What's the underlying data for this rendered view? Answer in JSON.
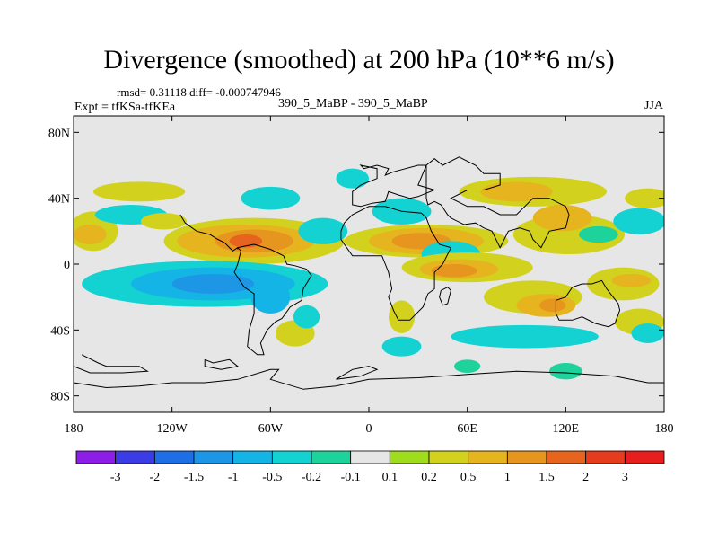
{
  "chart_data": {
    "type": "heatmap",
    "title": "Divergence (smoothed) at 200 hPa (10**6 m/s)",
    "stats": "rmsd= 0.31118 diff= -0.000747946",
    "experiment": "Expt = tfKSa-tfKEa",
    "cases": "390_5_MaBP - 390_5_MaBP",
    "season": "JJA",
    "x_axis": {
      "range": [
        -180,
        180
      ],
      "ticks": [
        {
          "value": -180,
          "label": "180"
        },
        {
          "value": -120,
          "label": "120W"
        },
        {
          "value": -60,
          "label": "60W"
        },
        {
          "value": 0,
          "label": "0"
        },
        {
          "value": 60,
          "label": "60E"
        },
        {
          "value": 120,
          "label": "120E"
        },
        {
          "value": 180,
          "label": "180"
        }
      ]
    },
    "y_axis": {
      "range": [
        -90,
        90
      ],
      "ticks": [
        {
          "value": 80,
          "label": "80N"
        },
        {
          "value": 40,
          "label": "40N"
        },
        {
          "value": 0,
          "label": "0"
        },
        {
          "value": -40,
          "label": "40S"
        },
        {
          "value": -80,
          "label": "80S"
        }
      ]
    },
    "colorbar": {
      "colors": [
        "#8c1ee6",
        "#3c3ce6",
        "#1e6ee6",
        "#1e96e6",
        "#14b4e6",
        "#14d2d2",
        "#1ed29b",
        "#e6e6e6",
        "#a0dc1e",
        "#d2d21e",
        "#e6b41e",
        "#e6961e",
        "#e6641e",
        "#e63c1e",
        "#e61e1e"
      ],
      "labels": [
        "-3",
        "-2",
        "-1.5",
        "-1",
        "-0.5",
        "-0.2",
        "-0.1",
        "0.1",
        "0.2",
        "0.5",
        "1",
        "1.5",
        "2",
        "3"
      ]
    },
    "regions": [
      {
        "lon": -140,
        "lat": 44,
        "rlon": 28,
        "rlat": 6,
        "level": 0.2
      },
      {
        "lon": -60,
        "lat": 40,
        "rlon": 18,
        "rlat": 7,
        "level": -0.2
      },
      {
        "lon": -10,
        "lat": 52,
        "rlon": 10,
        "rlat": 6,
        "level": -0.2
      },
      {
        "lon": 100,
        "lat": 44,
        "rlon": 45,
        "rlat": 9,
        "level": 0.2
      },
      {
        "lon": 90,
        "lat": 44,
        "rlon": 22,
        "rlat": 6,
        "level": 0.5
      },
      {
        "lon": 170,
        "lat": 40,
        "rlon": 14,
        "rlat": 6,
        "level": 0.2
      },
      {
        "lon": 20,
        "lat": 32,
        "rlon": 18,
        "rlat": 8,
        "level": -0.2
      },
      {
        "lon": -168,
        "lat": 20,
        "rlon": 15,
        "rlat": 12,
        "level": 0.2
      },
      {
        "lon": -170,
        "lat": 18,
        "rlon": 10,
        "rlat": 6,
        "level": 0.5
      },
      {
        "lon": -145,
        "lat": 30,
        "rlon": 22,
        "rlat": 6,
        "level": -0.2
      },
      {
        "lon": -125,
        "lat": 26,
        "rlon": 14,
        "rlat": 5,
        "level": 0.2
      },
      {
        "lon": -70,
        "lat": 14,
        "rlon": 55,
        "rlat": 14,
        "level": 0.2
      },
      {
        "lon": -75,
        "lat": 14,
        "rlon": 42,
        "rlat": 10,
        "level": 0.5
      },
      {
        "lon": -70,
        "lat": 14,
        "rlon": 24,
        "rlat": 7,
        "level": 1
      },
      {
        "lon": -75,
        "lat": 14,
        "rlon": 10,
        "rlat": 4,
        "level": 1.5
      },
      {
        "lon": -28,
        "lat": 20,
        "rlon": 15,
        "rlat": 8,
        "level": -0.2
      },
      {
        "lon": 35,
        "lat": 14,
        "rlon": 50,
        "rlat": 10,
        "level": 0.2
      },
      {
        "lon": 35,
        "lat": 14,
        "rlon": 35,
        "rlat": 8,
        "level": 0.5
      },
      {
        "lon": 32,
        "lat": 14,
        "rlon": 18,
        "rlat": 5,
        "level": 1
      },
      {
        "lon": 122,
        "lat": 18,
        "rlon": 34,
        "rlat": 12,
        "level": 0.2
      },
      {
        "lon": 118,
        "lat": 28,
        "rlon": 18,
        "rlat": 8,
        "level": 0.5
      },
      {
        "lon": 165,
        "lat": 26,
        "rlon": 16,
        "rlat": 8,
        "level": -0.2
      },
      {
        "lon": 140,
        "lat": 18,
        "rlon": 12,
        "rlat": 5,
        "level": -0.1
      },
      {
        "lon": 50,
        "lat": 6,
        "rlon": 18,
        "rlat": 8,
        "level": -0.2
      },
      {
        "lon": 60,
        "lat": -2,
        "rlon": 40,
        "rlat": 9,
        "level": 0.2
      },
      {
        "lon": 55,
        "lat": -3,
        "rlon": 24,
        "rlat": 6,
        "level": 0.5
      },
      {
        "lon": 52,
        "lat": -4,
        "rlon": 14,
        "rlat": 4,
        "level": 1
      },
      {
        "lon": -100,
        "lat": -12,
        "rlon": 75,
        "rlat": 14,
        "level": -0.2
      },
      {
        "lon": -95,
        "lat": -12,
        "rlon": 50,
        "rlat": 10,
        "level": -0.5
      },
      {
        "lon": -95,
        "lat": -12,
        "rlon": 25,
        "rlat": 6,
        "level": -1
      },
      {
        "lon": -60,
        "lat": -20,
        "rlon": 12,
        "rlat": 10,
        "level": -0.5
      },
      {
        "lon": -45,
        "lat": -42,
        "rlon": 12,
        "rlat": 8,
        "level": 0.2
      },
      {
        "lon": -38,
        "lat": -32,
        "rlon": 8,
        "rlat": 7,
        "level": -0.2
      },
      {
        "lon": 20,
        "lat": -32,
        "rlon": 8,
        "rlat": 10,
        "level": 0.2
      },
      {
        "lon": 20,
        "lat": -50,
        "rlon": 12,
        "rlat": 6,
        "level": -0.2
      },
      {
        "lon": 100,
        "lat": -20,
        "rlon": 30,
        "rlat": 10,
        "level": 0.2
      },
      {
        "lon": 108,
        "lat": -25,
        "rlon": 18,
        "rlat": 7,
        "level": 0.5
      },
      {
        "lon": 112,
        "lat": -25,
        "rlon": 8,
        "rlat": 4,
        "level": 1
      },
      {
        "lon": 95,
        "lat": -44,
        "rlon": 45,
        "rlat": 7,
        "level": -0.2
      },
      {
        "lon": 155,
        "lat": -12,
        "rlon": 22,
        "rlat": 10,
        "level": 0.2
      },
      {
        "lon": 160,
        "lat": -10,
        "rlon": 12,
        "rlat": 4,
        "level": 0.5
      },
      {
        "lon": 165,
        "lat": -35,
        "rlon": 15,
        "rlat": 8,
        "level": 0.2
      },
      {
        "lon": 170,
        "lat": -42,
        "rlon": 10,
        "rlat": 6,
        "level": -0.2
      },
      {
        "lon": 60,
        "lat": -62,
        "rlon": 8,
        "rlat": 4,
        "level": -0.1
      },
      {
        "lon": 120,
        "lat": -65,
        "rlon": 10,
        "rlat": 5,
        "level": -0.1
      }
    ],
    "coastlines": [
      [
        [
          -5,
          35
        ],
        [
          -10,
          36
        ],
        [
          -10,
          44
        ],
        [
          -5,
          48
        ],
        [
          5,
          52
        ],
        [
          5,
          58
        ],
        [
          -5,
          60
        ],
        [
          -3,
          58
        ],
        [
          5,
          60
        ],
        [
          12,
          58
        ],
        [
          10,
          54
        ],
        [
          15,
          56
        ],
        [
          30,
          60
        ],
        [
          35,
          60
        ],
        [
          30,
          48
        ],
        [
          40,
          45
        ],
        [
          30,
          41
        ],
        [
          25,
          40
        ],
        [
          18,
          42
        ],
        [
          12,
          44
        ],
        [
          10,
          38
        ],
        [
          2,
          37
        ],
        [
          -5,
          35
        ]
      ],
      [
        [
          35,
          60
        ],
        [
          40,
          64
        ],
        [
          45,
          60
        ],
        [
          55,
          65
        ],
        [
          65,
          60
        ],
        [
          70,
          55
        ],
        [
          80,
          55
        ],
        [
          80,
          48
        ],
        [
          70,
          45
        ],
        [
          60,
          45
        ],
        [
          50,
          40
        ],
        [
          60,
          35
        ],
        [
          70,
          35
        ],
        [
          80,
          30
        ],
        [
          90,
          30
        ],
        [
          100,
          40
        ],
        [
          110,
          40
        ],
        [
          120,
          35
        ],
        [
          122,
          30
        ],
        [
          120,
          22
        ],
        [
          110,
          20
        ],
        [
          105,
          10
        ],
        [
          100,
          15
        ],
        [
          98,
          20
        ],
        [
          92,
          22
        ],
        [
          85,
          20
        ],
        [
          80,
          10
        ],
        [
          75,
          20
        ],
        [
          70,
          22
        ],
        [
          65,
          25
        ],
        [
          58,
          24
        ],
        [
          50,
          28
        ],
        [
          48,
          30
        ],
        [
          44,
          36
        ],
        [
          40,
          38
        ],
        [
          36,
          36
        ],
        [
          35,
          40
        ],
        [
          35,
          60
        ]
      ],
      [
        [
          -17,
          20
        ],
        [
          -17,
          15
        ],
        [
          -10,
          5
        ],
        [
          0,
          5
        ],
        [
          8,
          5
        ],
        [
          10,
          0
        ],
        [
          12,
          -5
        ],
        [
          14,
          -15
        ],
        [
          12,
          -20
        ],
        [
          15,
          -28
        ],
        [
          18,
          -34
        ],
        [
          25,
          -34
        ],
        [
          33,
          -26
        ],
        [
          36,
          -18
        ],
        [
          40,
          -15
        ],
        [
          40,
          -5
        ],
        [
          45,
          0
        ],
        [
          50,
          10
        ],
        [
          43,
          12
        ],
        [
          38,
          20
        ],
        [
          35,
          28
        ],
        [
          32,
          31
        ],
        [
          20,
          32
        ],
        [
          10,
          35
        ],
        [
          0,
          35
        ],
        [
          -10,
          30
        ],
        [
          -15,
          25
        ],
        [
          -17,
          20
        ]
      ],
      [
        [
          44,
          -16
        ],
        [
          48,
          -14
        ],
        [
          50,
          -16
        ],
        [
          48,
          -24
        ],
        [
          45,
          -25
        ],
        [
          43,
          -20
        ],
        [
          44,
          -16
        ]
      ],
      [
        [
          114,
          -22
        ],
        [
          114,
          -30
        ],
        [
          116,
          -34
        ],
        [
          124,
          -34
        ],
        [
          130,
          -32
        ],
        [
          138,
          -36
        ],
        [
          146,
          -38
        ],
        [
          150,
          -36
        ],
        [
          153,
          -28
        ],
        [
          152,
          -24
        ],
        [
          145,
          -15
        ],
        [
          142,
          -10
        ],
        [
          136,
          -12
        ],
        [
          130,
          -12
        ],
        [
          124,
          -14
        ],
        [
          120,
          -20
        ],
        [
          114,
          -22
        ]
      ],
      [
        [
          -80,
          10
        ],
        [
          -78,
          8
        ],
        [
          -80,
          0
        ],
        [
          -82,
          -5
        ],
        [
          -76,
          -14
        ],
        [
          -70,
          -18
        ],
        [
          -70,
          -30
        ],
        [
          -73,
          -40
        ],
        [
          -74,
          -50
        ],
        [
          -68,
          -55
        ],
        [
          -64,
          -55
        ],
        [
          -66,
          -48
        ],
        [
          -62,
          -40
        ],
        [
          -57,
          -35
        ],
        [
          -53,
          -33
        ],
        [
          -48,
          -26
        ],
        [
          -41,
          -22
        ],
        [
          -40,
          -15
        ],
        [
          -35,
          -7
        ],
        [
          -38,
          -3
        ],
        [
          -45,
          -1
        ],
        [
          -50,
          0
        ],
        [
          -52,
          5
        ],
        [
          -60,
          9
        ],
        [
          -70,
          12
        ],
        [
          -75,
          11
        ],
        [
          -80,
          10
        ]
      ],
      [
        [
          -115,
          30
        ],
        [
          -112,
          25
        ],
        [
          -105,
          20
        ],
        [
          -97,
          18
        ],
        [
          -92,
          15
        ],
        [
          -88,
          13
        ],
        [
          -83,
          8
        ],
        [
          -80,
          10
        ],
        [
          -80,
          9
        ]
      ],
      [
        [
          -180,
          -72
        ],
        [
          -160,
          -75
        ],
        [
          -140,
          -74
        ],
        [
          -120,
          -72
        ],
        [
          -100,
          -72
        ],
        [
          -80,
          -70
        ],
        [
          -60,
          -64
        ],
        [
          -55,
          -64
        ],
        [
          -60,
          -70
        ],
        [
          -40,
          -76
        ],
        [
          -20,
          -74
        ],
        [
          0,
          -70
        ],
        [
          30,
          -69
        ],
        [
          60,
          -67
        ],
        [
          90,
          -65
        ],
        [
          120,
          -66
        ],
        [
          150,
          -68
        ],
        [
          170,
          -72
        ],
        [
          180,
          -72
        ]
      ],
      [
        [
          -175,
          -55
        ],
        [
          -165,
          -60
        ],
        [
          -160,
          -62
        ],
        [
          -140,
          -62
        ],
        [
          -135,
          -65
        ],
        [
          -150,
          -66
        ],
        [
          -170,
          -66
        ],
        [
          -180,
          -62
        ]
      ],
      [
        [
          -100,
          -58
        ],
        [
          -95,
          -60
        ],
        [
          -85,
          -58
        ],
        [
          -80,
          -62
        ],
        [
          -90,
          -64
        ],
        [
          -100,
          -62
        ],
        [
          -100,
          -58
        ]
      ],
      [
        [
          -20,
          -70
        ],
        [
          -5,
          -68
        ],
        [
          5,
          -64
        ],
        [
          0,
          -62
        ],
        [
          -10,
          -64
        ],
        [
          -20,
          -70
        ]
      ]
    ]
  }
}
